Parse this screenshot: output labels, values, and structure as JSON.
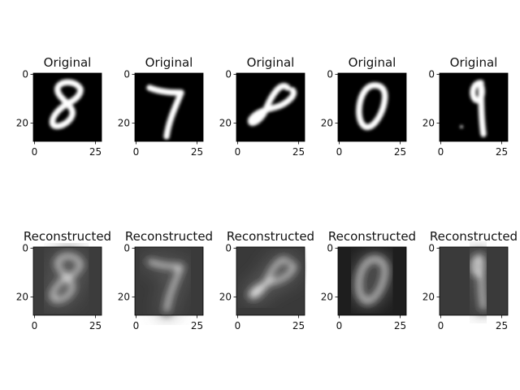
{
  "chart_data": {
    "type": "heatmap",
    "colormap": "gray",
    "image_size": 28,
    "axis_ticks": [
      "0",
      "20",
      "25"
    ],
    "rows": [
      {
        "title": "Original",
        "digits": [
          "8",
          "7",
          "8",
          "0",
          "9"
        ]
      },
      {
        "title": "Reconstructed",
        "digits": [
          "8",
          "7",
          "8",
          "0",
          "9"
        ]
      }
    ]
  }
}
